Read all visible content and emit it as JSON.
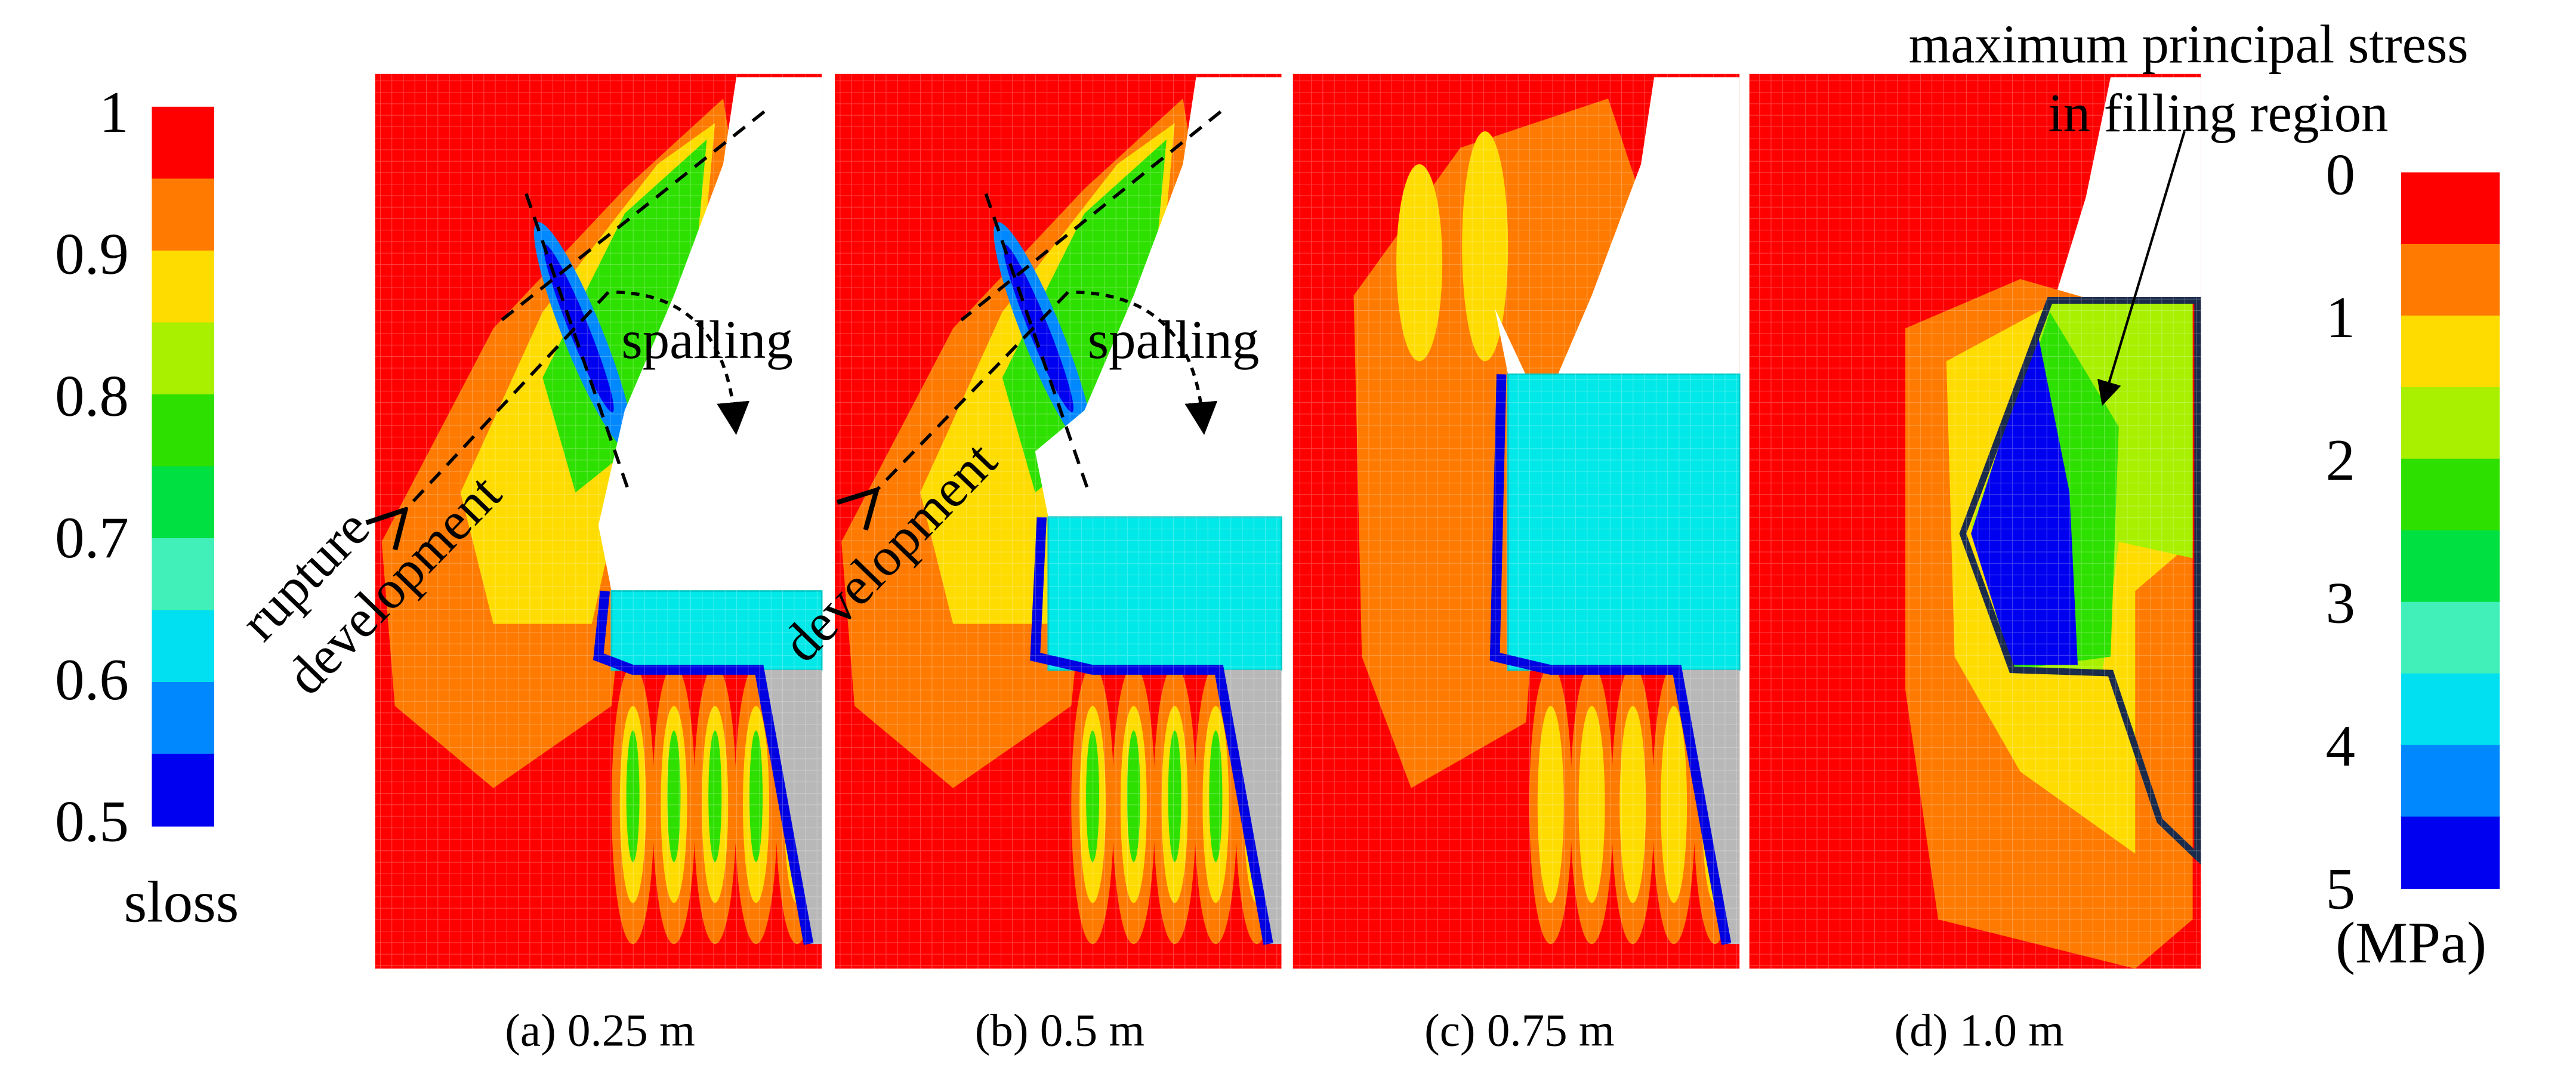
{
  "colorbar_left": {
    "ticks": [
      1,
      0.9,
      0.8,
      0.7,
      0.6,
      0.5
    ],
    "label": "sloss"
  },
  "colorbar_right": {
    "ticks": [
      0,
      1,
      2,
      3,
      4,
      5
    ],
    "unit": "(MPa)"
  },
  "panels": [
    {
      "caption": "(a) 0.25 m",
      "annotations": [
        "rupture",
        "development",
        "spalling"
      ]
    },
    {
      "caption": "(b) 0.5 m",
      "annotations": [
        "development",
        "spalling"
      ]
    },
    {
      "caption": "(c) 0.75 m"
    },
    {
      "caption": "(d) 1.0 m",
      "annotations": [
        "maximum principal stress",
        "in filling region"
      ]
    }
  ]
}
